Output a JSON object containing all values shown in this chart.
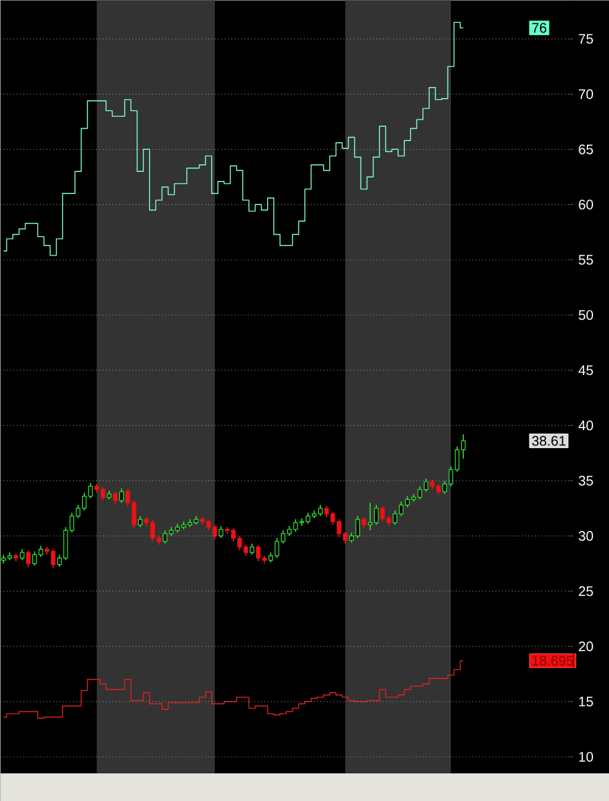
{
  "chart_data": {
    "type": "candlestick",
    "categories": [
      null,
      null,
      null,
      null,
      null,
      null,
      null,
      null,
      null,
      null,
      null,
      null,
      null,
      null,
      null,
      null,
      null,
      null,
      null,
      null,
      null,
      null,
      null,
      null,
      null,
      null,
      null,
      null,
      null,
      null,
      null,
      null,
      null,
      null,
      null,
      null,
      null,
      null,
      null,
      null,
      null,
      null,
      null,
      null,
      null,
      null,
      null,
      null,
      null,
      null,
      null,
      null,
      null,
      null,
      null,
      null,
      null,
      null,
      null,
      null,
      null,
      null,
      null,
      null,
      null,
      null,
      null,
      null,
      null,
      null,
      null,
      null,
      null,
      null,
      null
    ],
    "ohlc": [
      [
        27.8,
        28.3,
        27.5,
        28.0
      ],
      [
        28.0,
        28.5,
        27.8,
        28.2
      ],
      [
        28.2,
        28.4,
        27.7,
        28.0
      ],
      [
        28.0,
        28.8,
        27.8,
        28.5
      ],
      [
        28.5,
        28.7,
        27.2,
        27.5
      ],
      [
        27.5,
        28.6,
        27.3,
        28.3
      ],
      [
        28.3,
        29.1,
        28.1,
        28.8
      ],
      [
        28.8,
        29.0,
        28.3,
        28.6
      ],
      [
        28.6,
        28.8,
        27.1,
        27.4
      ],
      [
        27.4,
        28.3,
        27.2,
        28.0
      ],
      [
        28.0,
        30.8,
        27.8,
        30.5
      ],
      [
        30.5,
        32.1,
        30.3,
        31.8
      ],
      [
        31.8,
        32.8,
        31.6,
        32.5
      ],
      [
        32.5,
        33.9,
        32.3,
        33.6
      ],
      [
        33.6,
        34.8,
        33.4,
        34.5
      ],
      [
        34.5,
        34.7,
        33.9,
        34.2
      ],
      [
        34.2,
        34.4,
        33.2,
        33.5
      ],
      [
        33.5,
        34.1,
        33.3,
        33.8
      ],
      [
        33.8,
        34.0,
        32.9,
        33.2
      ],
      [
        33.2,
        34.3,
        33.0,
        34.0
      ],
      [
        34.0,
        34.3,
        32.7,
        33.0
      ],
      [
        33.0,
        33.2,
        30.7,
        31.0
      ],
      [
        31.0,
        31.8,
        30.8,
        31.5
      ],
      [
        31.5,
        31.7,
        30.9,
        31.2
      ],
      [
        31.2,
        31.4,
        29.5,
        29.8
      ],
      [
        29.8,
        30.0,
        29.2,
        29.5
      ],
      [
        29.5,
        30.5,
        29.3,
        30.2
      ],
      [
        30.2,
        30.8,
        30.0,
        30.5
      ],
      [
        30.5,
        31.1,
        30.3,
        30.8
      ],
      [
        30.8,
        31.3,
        30.6,
        31.0
      ],
      [
        31.0,
        31.5,
        30.8,
        31.2
      ],
      [
        31.2,
        31.8,
        31.0,
        31.5
      ],
      [
        31.5,
        31.7,
        31.0,
        31.3
      ],
      [
        31.3,
        31.5,
        30.5,
        30.8
      ],
      [
        30.8,
        31.0,
        29.7,
        30.0
      ],
      [
        30.0,
        30.9,
        29.8,
        30.6
      ],
      [
        30.6,
        30.8,
        30.2,
        30.5
      ],
      [
        30.5,
        30.7,
        29.5,
        29.8
      ],
      [
        29.8,
        30.0,
        28.7,
        29.0
      ],
      [
        29.0,
        29.2,
        28.2,
        28.5
      ],
      [
        28.5,
        29.3,
        28.3,
        29.0
      ],
      [
        29.0,
        29.2,
        27.7,
        28.0
      ],
      [
        28.0,
        28.2,
        27.5,
        27.8
      ],
      [
        27.8,
        28.5,
        27.6,
        28.2
      ],
      [
        28.2,
        29.8,
        28.0,
        29.5
      ],
      [
        29.5,
        30.5,
        29.3,
        30.2
      ],
      [
        30.2,
        30.9,
        30.0,
        30.6
      ],
      [
        30.6,
        31.5,
        30.4,
        31.2
      ],
      [
        31.2,
        31.6,
        30.9,
        31.3
      ],
      [
        31.3,
        32.1,
        31.1,
        31.8
      ],
      [
        31.8,
        32.3,
        31.6,
        32.0
      ],
      [
        32.0,
        32.8,
        31.8,
        32.5
      ],
      [
        32.5,
        32.7,
        31.7,
        32.0
      ],
      [
        32.0,
        32.2,
        31.0,
        31.3
      ],
      [
        31.3,
        31.5,
        29.9,
        30.2
      ],
      [
        30.2,
        30.4,
        29.3,
        29.6
      ],
      [
        29.6,
        30.3,
        29.4,
        30.0
      ],
      [
        30.0,
        31.8,
        29.8,
        31.5
      ],
      [
        31.5,
        31.7,
        30.7,
        31.0
      ],
      [
        31.0,
        33.0,
        30.5,
        31.2
      ],
      [
        31.2,
        32.8,
        31.0,
        32.5
      ],
      [
        32.5,
        32.7,
        31.3,
        31.6
      ],
      [
        31.6,
        31.8,
        30.9,
        31.2
      ],
      [
        31.2,
        32.3,
        31.0,
        32.0
      ],
      [
        32.0,
        33.1,
        31.8,
        32.8
      ],
      [
        32.8,
        33.6,
        32.6,
        33.3
      ],
      [
        33.3,
        33.8,
        33.1,
        33.5
      ],
      [
        33.5,
        34.5,
        33.3,
        34.2
      ],
      [
        34.2,
        35.2,
        34.0,
        34.9
      ],
      [
        34.9,
        35.1,
        34.2,
        34.5
      ],
      [
        34.5,
        34.7,
        33.7,
        34.0
      ],
      [
        34.0,
        35.0,
        33.8,
        34.7
      ],
      [
        34.7,
        36.3,
        34.5,
        36.0
      ],
      [
        36.0,
        38.1,
        35.8,
        37.8
      ],
      [
        37.8,
        39.2,
        37.0,
        38.61
      ]
    ],
    "colors": [
      "#33dd33",
      "#33dd33",
      "#ee1111",
      "#33dd33",
      "#ee1111",
      "#33dd33",
      "#33dd33",
      "#ee1111",
      "#ee1111",
      "#33dd33",
      "#33dd33",
      "#33dd33",
      "#33dd33",
      "#33dd33",
      "#33dd33",
      "#ee1111",
      "#ee1111",
      "#33dd33",
      "#ee1111",
      "#33dd33",
      "#ee1111",
      "#ee1111",
      "#33dd33",
      "#ee1111",
      "#ee1111",
      "#ee1111",
      "#33dd33",
      "#33dd33",
      "#33dd33",
      "#33dd33",
      "#33dd33",
      "#33dd33",
      "#ee1111",
      "#ee1111",
      "#ee1111",
      "#33dd33",
      "#ee1111",
      "#ee1111",
      "#ee1111",
      "#ee1111",
      "#33dd33",
      "#ee1111",
      "#ee1111",
      "#33dd33",
      "#33dd33",
      "#33dd33",
      "#33dd33",
      "#33dd33",
      "#33dd33",
      "#33dd33",
      "#33dd33",
      "#33dd33",
      "#ee1111",
      "#ee1111",
      "#ee1111",
      "#ee1111",
      "#33dd33",
      "#33dd33",
      "#ee1111",
      "#33dd33",
      "#33dd33",
      "#ee1111",
      "#ee1111",
      "#33dd33",
      "#33dd33",
      "#33dd33",
      "#33dd33",
      "#33dd33",
      "#33dd33",
      "#ee1111",
      "#ee1111",
      "#33dd33",
      "#33dd33",
      "#33dd33",
      "#33dd33"
    ],
    "series": [
      {
        "type": "step",
        "color": "#80ffcc",
        "values": [
          55.8,
          56.9,
          57.3,
          57.8,
          58.3,
          58.3,
          57.1,
          56.3,
          55.4,
          56.9,
          61,
          61,
          63,
          66.9,
          69.4,
          69.4,
          69.4,
          68.5,
          68,
          68,
          69.5,
          68.5,
          63,
          65,
          59.5,
          60.4,
          61.6,
          60.9,
          61.9,
          61.9,
          63.3,
          63.3,
          63.6,
          64.4,
          61,
          62.1,
          61.9,
          63.5,
          63.1,
          60.4,
          59.4,
          60,
          59.5,
          60.6,
          57.3,
          56.3,
          56.3,
          57.3,
          58.5,
          61.4,
          63.6,
          63.6,
          63.1,
          64.4,
          65.6,
          65.1,
          66.1,
          64.3,
          61.4,
          62.5,
          64.3,
          67.1,
          64.8,
          65,
          64.4,
          65.8,
          66.9,
          67.7,
          68.7,
          70.6,
          69.5,
          69.6,
          72.5,
          76.5,
          76
        ]
      },
      {
        "type": "step",
        "color": "#dd2222",
        "values": [
          13.6,
          13.9,
          13.9,
          14.1,
          14.1,
          14.1,
          13.5,
          13.6,
          13.6,
          13.6,
          14.6,
          14.6,
          14.6,
          16,
          17,
          17,
          16.6,
          16.1,
          16.1,
          16.1,
          17,
          15.1,
          15.1,
          15.8,
          14.8,
          14.8,
          14.3,
          14.9,
          14.9,
          14.9,
          14.9,
          14.9,
          15.4,
          15.9,
          14.8,
          14.8,
          15,
          15,
          15.4,
          15.4,
          14.4,
          14.6,
          14.6,
          13.9,
          13.8,
          13.9,
          14.1,
          14.4,
          14.8,
          15,
          15.3,
          15.4,
          15.6,
          15.8,
          15.6,
          15.4,
          15.1,
          15,
          15,
          15.1,
          15.1,
          16.1,
          15.4,
          15.4,
          15.6,
          16.1,
          16.4,
          16.4,
          16.6,
          17.1,
          17.1,
          17.1,
          17.4,
          17.9,
          18.7
        ]
      }
    ],
    "ylim": [
      8.5,
      78.5
    ],
    "yticks": [
      10,
      15,
      20,
      25,
      30,
      35,
      40,
      45,
      50,
      55,
      60,
      65,
      70,
      75
    ],
    "grid": "y",
    "tick_labels": "y",
    "annotations": [
      "76",
      "38.61",
      "18.695"
    ]
  }
}
